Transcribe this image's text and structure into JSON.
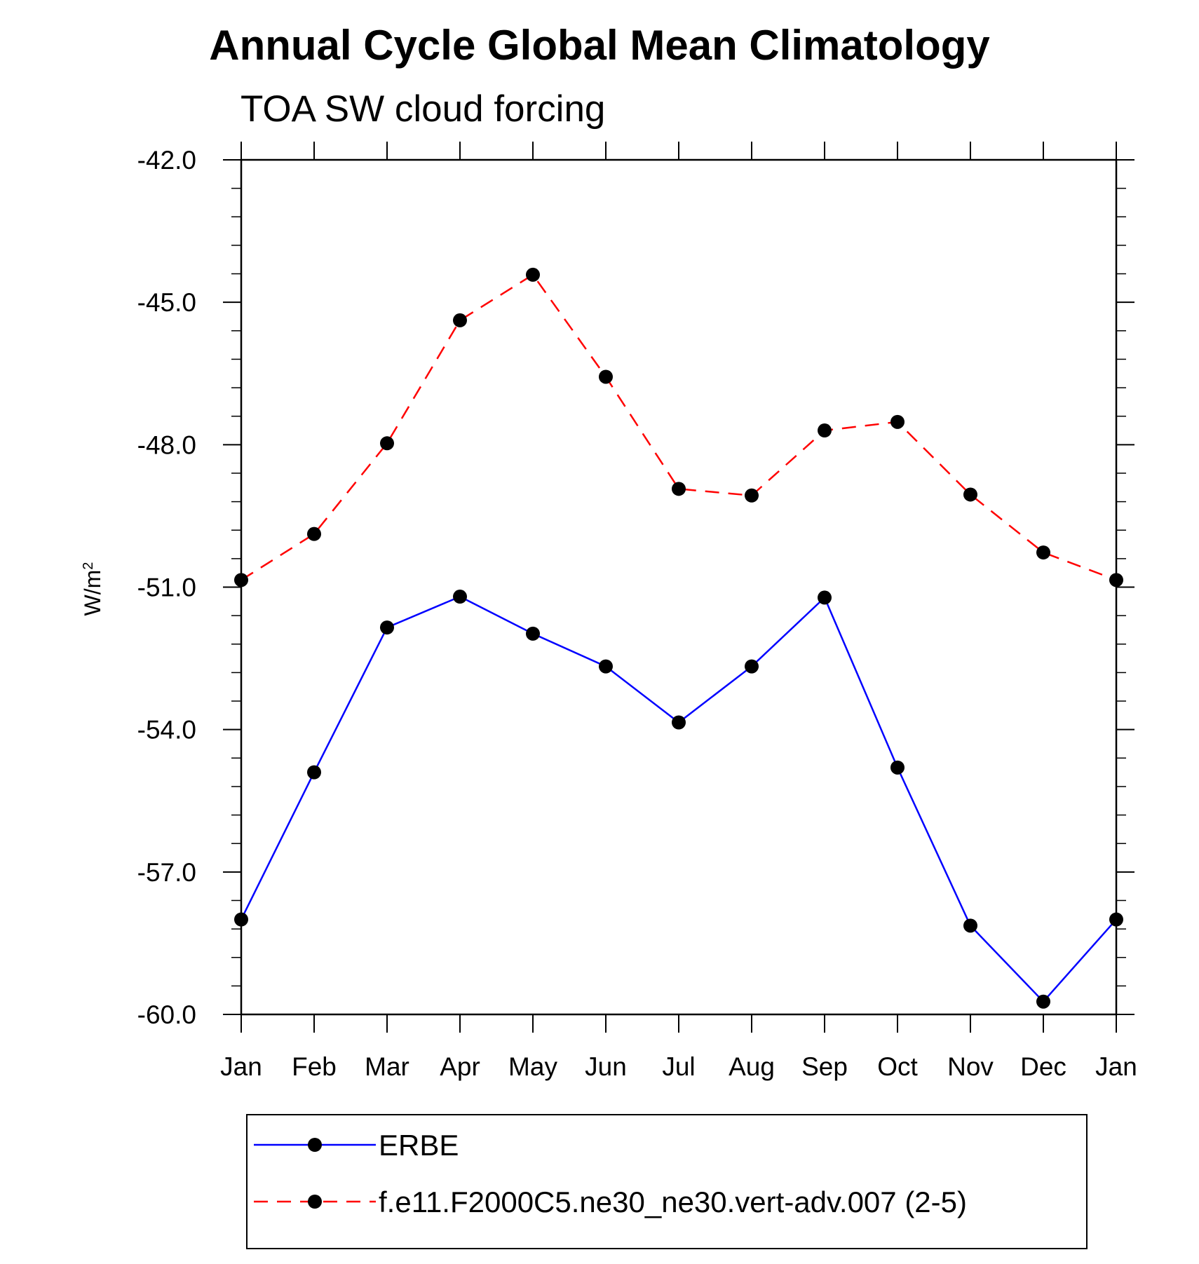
{
  "chart_data": {
    "type": "line",
    "title": "Annual Cycle Global Mean Climatology",
    "subtitle": "TOA SW cloud forcing",
    "ylabel_base": "W/m",
    "ylabel_sup": "2",
    "xlabel": "",
    "categories": [
      "Jan",
      "Feb",
      "Mar",
      "Apr",
      "May",
      "Jun",
      "Jul",
      "Aug",
      "Sep",
      "Oct",
      "Nov",
      "Dec",
      "Jan"
    ],
    "ylim": [
      -60.0,
      -42.0
    ],
    "yticks": [
      "-42.0",
      "-45.0",
      "-48.0",
      "-51.0",
      "-54.0",
      "-57.0",
      "-60.0"
    ],
    "ytick_values": [
      -42.0,
      -45.0,
      -48.0,
      -51.0,
      -54.0,
      -57.0,
      -60.0
    ],
    "grid": false,
    "legend_position": "bottom",
    "series": [
      {
        "name": "ERBE",
        "color": "#0000ff",
        "style": "solid",
        "values": [
          -58.0,
          -54.9,
          -51.85,
          -51.2,
          -51.98,
          -52.67,
          -53.85,
          -52.67,
          -51.22,
          -54.8,
          -58.13,
          -59.73,
          -58.0
        ]
      },
      {
        "name": "f.e11.F2000C5.ne30_ne30.vert-adv.007 (2-5)",
        "color": "#ff0000",
        "style": "dashed",
        "values": [
          -50.85,
          -49.88,
          -47.97,
          -45.38,
          -44.42,
          -46.57,
          -48.93,
          -49.07,
          -47.7,
          -47.52,
          -49.05,
          -50.27,
          -50.85
        ]
      }
    ]
  }
}
